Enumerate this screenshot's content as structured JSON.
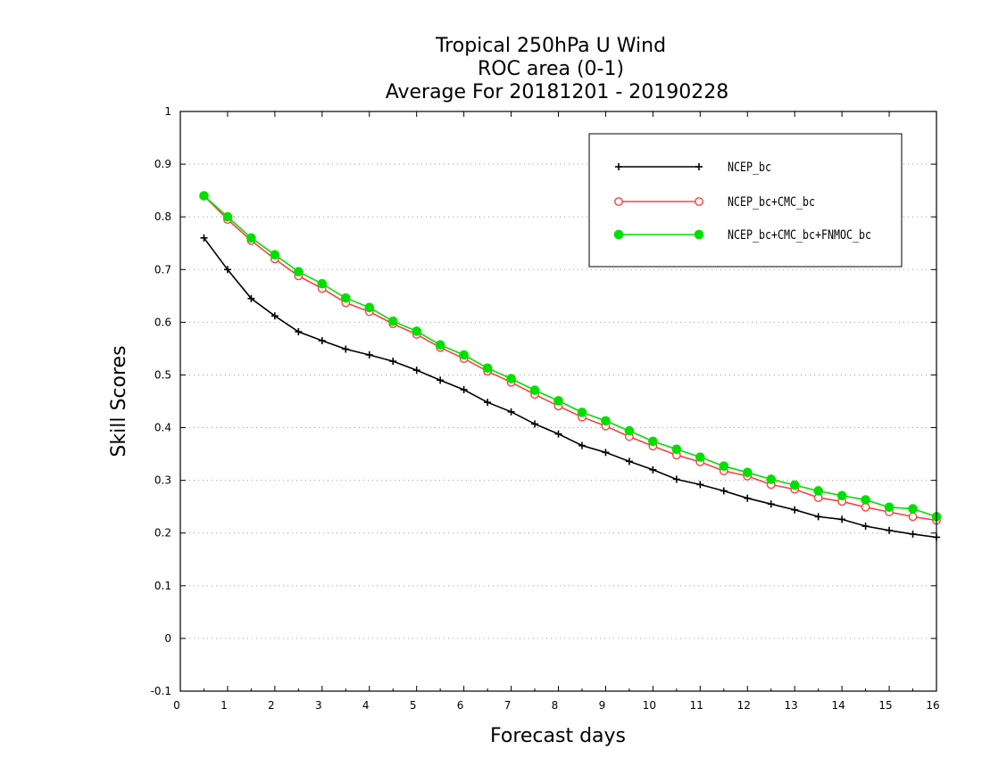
{
  "chart_data": {
    "type": "line",
    "title_lines": [
      "Tropical 250hPa U Wind",
      "ROC area (0-1)",
      "Average For 20181201 - 20190228"
    ],
    "xlabel": "Forecast days",
    "ylabel": "Skill Scores",
    "xlim": [
      0,
      16
    ],
    "ylim": [
      -0.1,
      1
    ],
    "xticks": [
      "0",
      "1",
      "2",
      "3",
      "4",
      "5",
      "6",
      "7",
      "8",
      "9",
      "10",
      "11",
      "12",
      "13",
      "14",
      "15",
      "16"
    ],
    "yticks": [
      "-0.1",
      "0",
      "0.1",
      "0.2",
      "0.3",
      "0.4",
      "0.5",
      "0.6",
      "0.7",
      "0.8",
      "0.9",
      "1"
    ],
    "grid": true,
    "legend_position": "top-right",
    "x": [
      0.5,
      1,
      1.5,
      2,
      2.5,
      3,
      3.5,
      4,
      4.5,
      5,
      5.5,
      6,
      6.5,
      7,
      7.5,
      8,
      8.5,
      9,
      9.5,
      10,
      10.5,
      11,
      11.5,
      12,
      12.5,
      13,
      13.5,
      14,
      14.5,
      15,
      15.5,
      16
    ],
    "series": [
      {
        "name": "NCEP_bc",
        "color": "#000000",
        "marker": "plus",
        "values": [
          0.76,
          0.7,
          0.645,
          0.612,
          0.582,
          0.565,
          0.549,
          0.538,
          0.526,
          0.509,
          0.49,
          0.472,
          0.448,
          0.43,
          0.407,
          0.388,
          0.366,
          0.353,
          0.336,
          0.32,
          0.302,
          0.292,
          0.28,
          0.266,
          0.255,
          0.244,
          0.231,
          0.226,
          0.213,
          0.205,
          0.198,
          0.192
        ]
      },
      {
        "name": "NCEP_bc+CMC_bc",
        "color": "#ff4040",
        "marker": "open-circle",
        "values": [
          0.84,
          0.795,
          0.755,
          0.72,
          0.688,
          0.664,
          0.637,
          0.62,
          0.597,
          0.577,
          0.552,
          0.531,
          0.507,
          0.486,
          0.463,
          0.441,
          0.42,
          0.403,
          0.383,
          0.365,
          0.348,
          0.335,
          0.318,
          0.308,
          0.292,
          0.283,
          0.267,
          0.26,
          0.249,
          0.24,
          0.231,
          0.224
        ]
      },
      {
        "name": "NCEP_bc+CMC_bc+FNMOC_bc",
        "color": "#00e000",
        "marker": "filled-circle",
        "values": [
          0.84,
          0.8,
          0.76,
          0.728,
          0.696,
          0.673,
          0.646,
          0.628,
          0.602,
          0.583,
          0.557,
          0.538,
          0.513,
          0.493,
          0.471,
          0.451,
          0.429,
          0.413,
          0.394,
          0.374,
          0.359,
          0.344,
          0.327,
          0.315,
          0.302,
          0.291,
          0.28,
          0.271,
          0.263,
          0.249,
          0.246,
          0.231
        ]
      }
    ]
  }
}
